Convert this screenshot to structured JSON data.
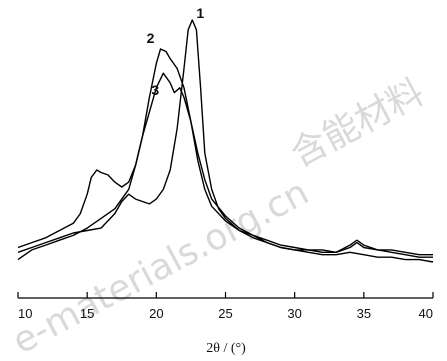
{
  "watermark": {
    "latin": "e-materials.org.cn",
    "cjk": "含能材料"
  },
  "chart_data": {
    "type": "line",
    "xlabel": "2θ / (°)",
    "ylabel": "",
    "xlim": [
      10,
      40
    ],
    "ylim": [
      0,
      1
    ],
    "xticks": [
      10,
      15,
      20,
      25,
      30,
      35,
      40
    ],
    "grid": false,
    "series": [
      {
        "name": "1",
        "color": "#000000",
        "points": [
          [
            10,
            0.04
          ],
          [
            11,
            0.06
          ],
          [
            12,
            0.08
          ],
          [
            13,
            0.1
          ],
          [
            14,
            0.12
          ],
          [
            15,
            0.13
          ],
          [
            16,
            0.14
          ],
          [
            17,
            0.2
          ],
          [
            17.5,
            0.25
          ],
          [
            18,
            0.28
          ],
          [
            18.5,
            0.26
          ],
          [
            19,
            0.25
          ],
          [
            19.5,
            0.24
          ],
          [
            20,
            0.26
          ],
          [
            20.5,
            0.3
          ],
          [
            21,
            0.38
          ],
          [
            21.5,
            0.55
          ],
          [
            22,
            0.8
          ],
          [
            22.3,
            0.96
          ],
          [
            22.6,
            1.0
          ],
          [
            22.9,
            0.96
          ],
          [
            23.2,
            0.72
          ],
          [
            23.5,
            0.45
          ],
          [
            24,
            0.3
          ],
          [
            24.5,
            0.22
          ],
          [
            25,
            0.18
          ],
          [
            26,
            0.13
          ],
          [
            27,
            0.1
          ],
          [
            28,
            0.08
          ],
          [
            29,
            0.06
          ],
          [
            30,
            0.05
          ],
          [
            31,
            0.05
          ],
          [
            32,
            0.04
          ],
          [
            33,
            0.04
          ],
          [
            34,
            0.06
          ],
          [
            34.5,
            0.08
          ],
          [
            35,
            0.06
          ],
          [
            36,
            0.05
          ],
          [
            37,
            0.04
          ],
          [
            38,
            0.03
          ],
          [
            39,
            0.02
          ],
          [
            40,
            0.02
          ]
        ]
      },
      {
        "name": "2",
        "color": "#000000",
        "points": [
          [
            10,
            0.06
          ],
          [
            11,
            0.08
          ],
          [
            12,
            0.1
          ],
          [
            13,
            0.13
          ],
          [
            14,
            0.16
          ],
          [
            14.5,
            0.2
          ],
          [
            15,
            0.28
          ],
          [
            15.3,
            0.35
          ],
          [
            15.7,
            0.38
          ],
          [
            16,
            0.37
          ],
          [
            16.5,
            0.36
          ],
          [
            17,
            0.33
          ],
          [
            17.5,
            0.31
          ],
          [
            18,
            0.33
          ],
          [
            18.5,
            0.4
          ],
          [
            19,
            0.52
          ],
          [
            19.5,
            0.68
          ],
          [
            20,
            0.82
          ],
          [
            20.3,
            0.88
          ],
          [
            20.7,
            0.87
          ],
          [
            21,
            0.84
          ],
          [
            21.5,
            0.8
          ],
          [
            22,
            0.72
          ],
          [
            22.5,
            0.58
          ],
          [
            23,
            0.42
          ],
          [
            23.5,
            0.3
          ],
          [
            24,
            0.23
          ],
          [
            25,
            0.17
          ],
          [
            26,
            0.13
          ],
          [
            27,
            0.11
          ],
          [
            28,
            0.09
          ],
          [
            29,
            0.07
          ],
          [
            30,
            0.06
          ],
          [
            31,
            0.05
          ],
          [
            32,
            0.05
          ],
          [
            33,
            0.04
          ],
          [
            34,
            0.07
          ],
          [
            34.5,
            0.09
          ],
          [
            35,
            0.07
          ],
          [
            36,
            0.05
          ],
          [
            37,
            0.05
          ],
          [
            38,
            0.04
          ],
          [
            39,
            0.03
          ],
          [
            40,
            0.03
          ]
        ]
      },
      {
        "name": "3",
        "color": "#000000",
        "points": [
          [
            10,
            0.01
          ],
          [
            10.5,
            0.03
          ],
          [
            11,
            0.05
          ],
          [
            12,
            0.07
          ],
          [
            13,
            0.09
          ],
          [
            14,
            0.11
          ],
          [
            15,
            0.14
          ],
          [
            16,
            0.18
          ],
          [
            17,
            0.22
          ],
          [
            18,
            0.3
          ],
          [
            18.5,
            0.4
          ],
          [
            19,
            0.52
          ],
          [
            19.5,
            0.62
          ],
          [
            20,
            0.72
          ],
          [
            20.5,
            0.78
          ],
          [
            21,
            0.74
          ],
          [
            21.3,
            0.7
          ],
          [
            21.7,
            0.72
          ],
          [
            22,
            0.68
          ],
          [
            22.5,
            0.58
          ],
          [
            23,
            0.45
          ],
          [
            23.5,
            0.34
          ],
          [
            24,
            0.26
          ],
          [
            25,
            0.19
          ],
          [
            26,
            0.14
          ],
          [
            27,
            0.11
          ],
          [
            28,
            0.08
          ],
          [
            29,
            0.06
          ],
          [
            30,
            0.05
          ],
          [
            31,
            0.04
          ],
          [
            32,
            0.03
          ],
          [
            33,
            0.03
          ],
          [
            34,
            0.04
          ],
          [
            35,
            0.03
          ],
          [
            36,
            0.02
          ],
          [
            37,
            0.02
          ],
          [
            38,
            0.01
          ],
          [
            39,
            0.01
          ],
          [
            40,
            0.0
          ]
        ]
      }
    ]
  }
}
